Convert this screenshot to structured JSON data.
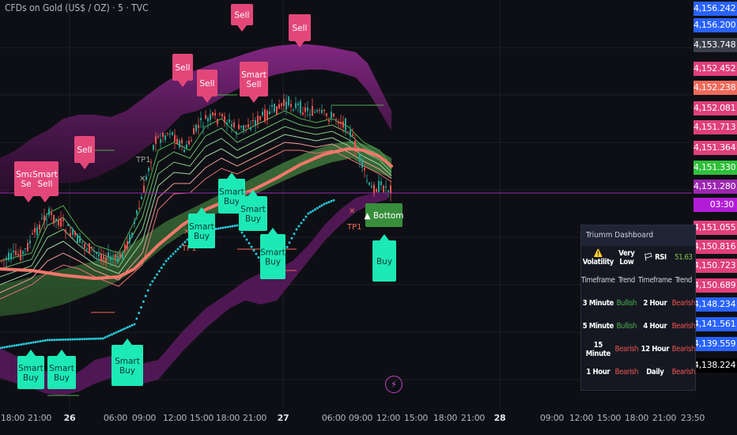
{
  "header": {
    "title": "CFDs on Gold (US$ / OZ) · 5 · TVC"
  },
  "price_axis": [
    {
      "label": "4,156.242",
      "color": "#2962ff"
    },
    {
      "label": "4,156.200",
      "color": "#2962ff"
    },
    {
      "label": "4,153.748",
      "color": "#3b3f4c"
    },
    {
      "label": "4,152.452",
      "color": "#e0407a"
    },
    {
      "label": "4,152.238",
      "color": "#f06a5a"
    },
    {
      "label": "4,152.081",
      "color": "#e0407a"
    },
    {
      "label": "4,151.713",
      "color": "#e0407a"
    },
    {
      "label": "4,151.364",
      "color": "#e0407a"
    },
    {
      "label": "4,151.330",
      "color": "#2fbf3a"
    },
    {
      "label": "4,151.280",
      "color": "#9c27b0"
    },
    {
      "label": "03:30",
      "color": "#b21cd6"
    },
    {
      "label": "4,151.055",
      "color": "#e0407a"
    },
    {
      "label": "4,150.816",
      "color": "#e0407a"
    },
    {
      "label": "4,150.723",
      "color": "#e0407a"
    },
    {
      "label": "4,150.689",
      "color": "#e0407a"
    },
    {
      "label": "4,148.234",
      "color": "#2962ff"
    },
    {
      "label": "4,141.561",
      "color": "#2962ff"
    },
    {
      "label": "4,139.559",
      "color": "#2962ff"
    },
    {
      "label": "4,138.224",
      "color": "#000000"
    }
  ],
  "time_axis": [
    {
      "label": "18:00",
      "bold": false
    },
    {
      "label": "21:00",
      "bold": false
    },
    {
      "label": "26",
      "bold": true
    },
    {
      "label": "06:00",
      "bold": false
    },
    {
      "label": "09:00",
      "bold": false
    },
    {
      "label": "12:00",
      "bold": false
    },
    {
      "label": "15:00",
      "bold": false
    },
    {
      "label": "18:00",
      "bold": false
    },
    {
      "label": "21:00",
      "bold": false
    },
    {
      "label": "27",
      "bold": true
    },
    {
      "label": "06:00",
      "bold": false
    },
    {
      "label": "09:00",
      "bold": false
    },
    {
      "label": "12:00",
      "bold": false
    },
    {
      "label": "15:00",
      "bold": false
    },
    {
      "label": "18:00",
      "bold": false
    },
    {
      "label": "21:00",
      "bold": false
    },
    {
      "label": "28",
      "bold": true
    },
    {
      "label": "09:00",
      "bold": false
    },
    {
      "label": "12:00",
      "bold": false
    },
    {
      "label": "15:00",
      "bold": false
    },
    {
      "label": "18:00",
      "bold": false
    },
    {
      "label": "21:00",
      "bold": false
    },
    {
      "label": "23:50",
      "bold": false
    }
  ],
  "signals": [
    {
      "text": [
        "Sell"
      ],
      "kind": "sell",
      "id": "s1"
    },
    {
      "text": [
        "Sell"
      ],
      "kind": "sell",
      "id": "s2"
    },
    {
      "text": [
        "Sell"
      ],
      "kind": "sell",
      "id": "s3"
    },
    {
      "text": [
        "Sell"
      ],
      "kind": "sell",
      "id": "s4"
    },
    {
      "text": [
        "Sell"
      ],
      "kind": "sell",
      "id": "s5"
    },
    {
      "text": [
        "Smart",
        "Sell"
      ],
      "kind": "sell",
      "id": "s6"
    },
    {
      "text": [
        "Smart",
        "Sell"
      ],
      "kind": "sell",
      "id": "s7"
    },
    {
      "text": [
        "Smart",
        "Sell"
      ],
      "kind": "sell",
      "id": "s8"
    },
    {
      "text": [
        "Smart",
        "Buy"
      ],
      "kind": "buy",
      "id": "b1"
    },
    {
      "text": [
        "Smart",
        "Buy"
      ],
      "kind": "buy",
      "id": "b2"
    },
    {
      "text": [
        "Smart",
        "Buy"
      ],
      "kind": "buy",
      "id": "b3"
    },
    {
      "text": [
        "Smart",
        "Buy"
      ],
      "kind": "buy",
      "id": "b4"
    },
    {
      "text": [
        "Smart",
        "Buy"
      ],
      "kind": "buy",
      "id": "b5"
    },
    {
      "text": [
        "Smart",
        "Buy"
      ],
      "kind": "buy",
      "id": "b6"
    },
    {
      "text": [
        "Smart",
        "Buy"
      ],
      "kind": "buy",
      "id": "b7"
    },
    {
      "text": [
        "Buy"
      ],
      "kind": "buy",
      "id": "b8"
    },
    {
      "text": [
        "▲ Bottom"
      ],
      "kind": "bottom",
      "id": "bt"
    }
  ],
  "tp_labels": [
    "TP1",
    "TP1",
    "TP1"
  ],
  "dashboard": {
    "title": "Triumm Dashboard",
    "volatility_label": "⚠️ Volatility",
    "volatility_value": "Very Low",
    "rsi_label": "🏳 RSI",
    "rsi_value": "51.63",
    "headers": [
      "Timeframe",
      "Trend",
      "Timeframe",
      "Trend"
    ],
    "rows": [
      [
        "3 Minute",
        "Bullish",
        "2 Hour",
        "Bearish"
      ],
      [
        "5 Minute",
        "Bullish",
        "4 Hour",
        "Bearish"
      ],
      [
        "15 Minute",
        "Bearish",
        "12 Hour",
        "Bearish"
      ],
      [
        "1 Hour",
        "Bearish",
        "Daily",
        "Bearish"
      ]
    ],
    "colors": {
      "bullish": "#4caf50",
      "bearish": "#ef5350",
      "rsi": "#8bc34a"
    }
  },
  "colors": {
    "background": "#0e0f14",
    "sell": "#e3477a",
    "buy": "#1de9b6",
    "bottom": "#388e3c",
    "trend_line": "#f4776a",
    "cloud": "#3a6b3a",
    "band": "#6a1b6a"
  },
  "chart_data": {
    "type": "line",
    "title": "CFDs on Gold (US$ / OZ) · 5 · TVC",
    "x": [
      "18:00",
      "21:00",
      "26",
      "06:00",
      "09:00",
      "12:00",
      "15:00",
      "18:00",
      "21:00",
      "27",
      "06:00",
      "09:00",
      "12:00"
    ],
    "series": [
      {
        "values": [
          4138.5,
          4141.0,
          4139.0,
          4140.5,
          4146.5,
          4150.5,
          4151.8,
          4152.6,
          4152.0,
          4151.5,
          4152.9,
          4153.3,
          4151.4
        ]
      }
    ],
    "ylim": [
      4137.5,
      4157.0
    ],
    "grid": true
  }
}
